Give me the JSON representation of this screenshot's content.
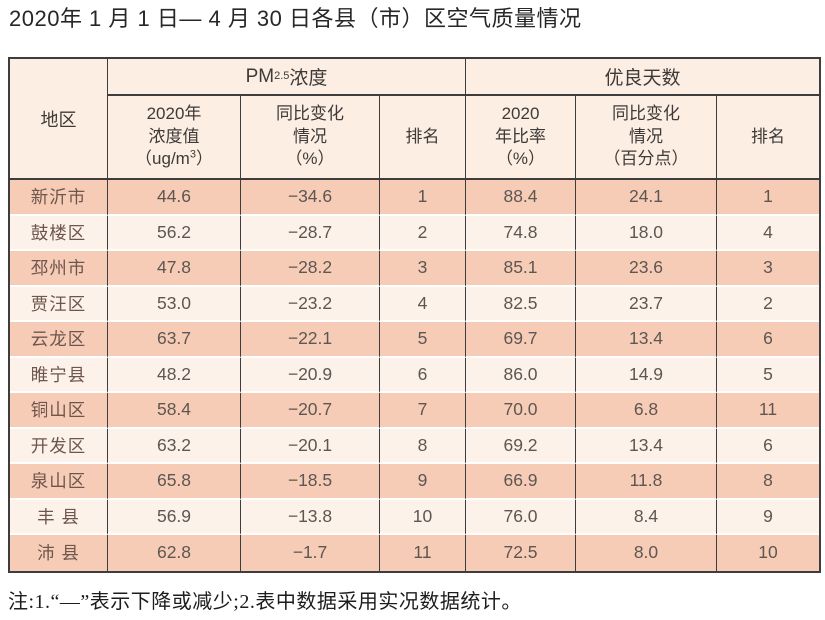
{
  "title": "2020年 1 月 1 日— 4 月 30 日各县（市）区空气质量情况",
  "footnote": "注:1.“—”表示下降或减少;2.表中数据采用实况数据统计。",
  "colors": {
    "grid_line": "#3d3d3d",
    "header_bg": "#fceee2",
    "row_dark": "#f6ccb7",
    "row_light": "#fcf2e9",
    "row_separator": "#ffffff",
    "data_text": "#5d5651",
    "header_text": "#3e3a38"
  },
  "table": {
    "header": {
      "region": "地区",
      "pm_group": {
        "base": "PM",
        "sub": "2.5",
        "rest": " 浓度"
      },
      "good_group": "优良天数",
      "pm_value": {
        "line1": "2020年",
        "line2": "浓度值",
        "unit_pre": "（ug/m",
        "unit_sup": "3",
        "unit_post": "）"
      },
      "pm_change": {
        "line1": "同比变化",
        "line2": "情况",
        "line3": "（%）"
      },
      "pm_rank": "排名",
      "good_rate": {
        "line1": "2020",
        "line2": "年比率",
        "line3": "（%）"
      },
      "good_change": {
        "line1": "同比变化",
        "line2": "情况",
        "line3": "（百分点）"
      },
      "good_rank": "排名"
    },
    "rows": [
      {
        "region": "新沂市",
        "pm_value": "44.6",
        "pm_change": "−34.6",
        "pm_rank": "1",
        "good_rate": "88.4",
        "good_change": "24.1",
        "good_rank": "1"
      },
      {
        "region": "鼓楼区",
        "pm_value": "56.2",
        "pm_change": "−28.7",
        "pm_rank": "2",
        "good_rate": "74.8",
        "good_change": "18.0",
        "good_rank": "4"
      },
      {
        "region": "邳州市",
        "pm_value": "47.8",
        "pm_change": "−28.2",
        "pm_rank": "3",
        "good_rate": "85.1",
        "good_change": "23.6",
        "good_rank": "3"
      },
      {
        "region": "贾汪区",
        "pm_value": "53.0",
        "pm_change": "−23.2",
        "pm_rank": "4",
        "good_rate": "82.5",
        "good_change": "23.7",
        "good_rank": "2"
      },
      {
        "region": "云龙区",
        "pm_value": "63.7",
        "pm_change": "−22.1",
        "pm_rank": "5",
        "good_rate": "69.7",
        "good_change": "13.4",
        "good_rank": "6"
      },
      {
        "region": "睢宁县",
        "pm_value": "48.2",
        "pm_change": "−20.9",
        "pm_rank": "6",
        "good_rate": "86.0",
        "good_change": "14.9",
        "good_rank": "5"
      },
      {
        "region": "铜山区",
        "pm_value": "58.4",
        "pm_change": "−20.7",
        "pm_rank": "7",
        "good_rate": "70.0",
        "good_change": "6.8",
        "good_rank": "11"
      },
      {
        "region": "开发区",
        "pm_value": "63.2",
        "pm_change": "−20.1",
        "pm_rank": "8",
        "good_rate": "69.2",
        "good_change": "13.4",
        "good_rank": "6"
      },
      {
        "region": "泉山区",
        "pm_value": "65.8",
        "pm_change": "−18.5",
        "pm_rank": "9",
        "good_rate": "66.9",
        "good_change": "11.8",
        "good_rank": "8"
      },
      {
        "region": "丰 县",
        "pm_value": "56.9",
        "pm_change": "−13.8",
        "pm_rank": "10",
        "good_rate": "76.0",
        "good_change": "8.4",
        "good_rank": "9"
      },
      {
        "region": "沛 县",
        "pm_value": "62.8",
        "pm_change": "−1.7",
        "pm_rank": "11",
        "good_rate": "72.5",
        "good_change": "8.0",
        "good_rank": "10"
      }
    ]
  }
}
